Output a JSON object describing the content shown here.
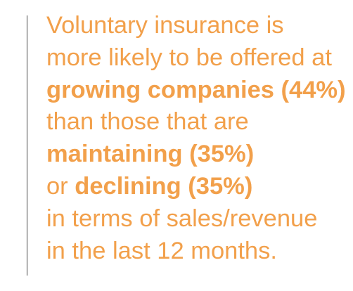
{
  "callout": {
    "color": "#f2a04b",
    "rule_color": "#444444",
    "lines": [
      {
        "text": "Voluntary insurance is"
      },
      {
        "text": "more likely to be offered at"
      },
      {
        "emphasis": "growing companies (44%)"
      },
      {
        "text": "than those that are"
      },
      {
        "emphasis": "maintaining (35%)"
      },
      {
        "text": "or ",
        "emphasis": "declining (35%)"
      },
      {
        "text": "in terms of sales/revenue"
      },
      {
        "text": "in the last 12 months."
      }
    ]
  }
}
